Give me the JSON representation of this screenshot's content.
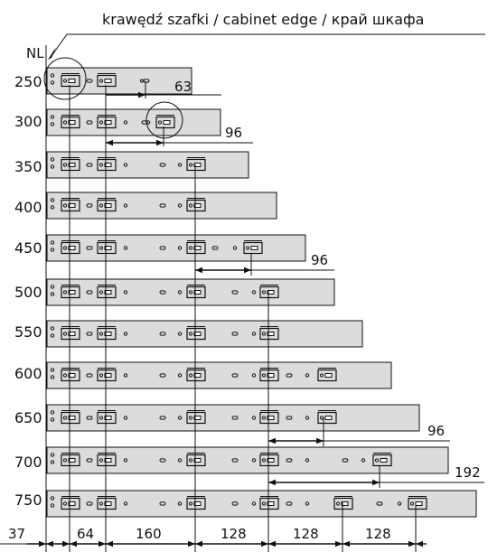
{
  "title": "krawędź szafki / cabinet edge / край шкафа",
  "nl_label": "NL",
  "rows": [
    "250",
    "300",
    "350",
    "400",
    "450",
    "500",
    "550",
    "600",
    "650",
    "700",
    "750"
  ],
  "dims": [
    "63",
    "96",
    "96",
    "96",
    "192"
  ],
  "bottom_dims": [
    "37",
    "64",
    "160",
    "128",
    "128",
    "128"
  ]
}
